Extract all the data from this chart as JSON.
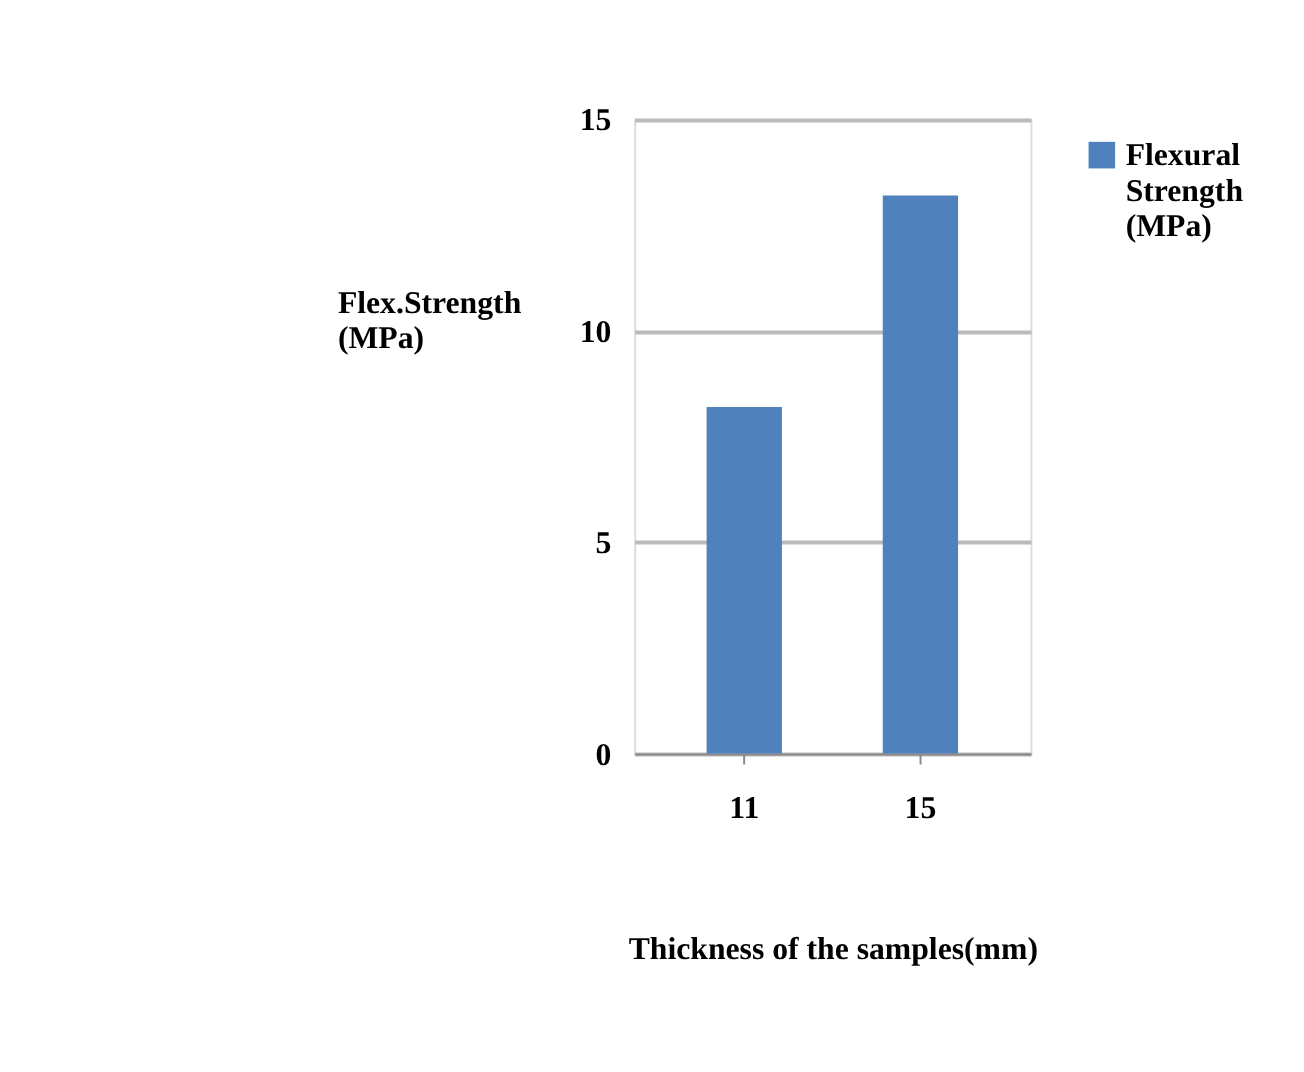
{
  "chart_data": {
    "type": "bar",
    "xlabel": "Thickness of the samples(mm)",
    "ylabel": "Flex.Strength (MPa)",
    "categories": [
      "11",
      "15"
    ],
    "series": [
      {
        "name": "Flexural Strength (MPa)",
        "color": "#4f81bd",
        "values": [
          8.2,
          13.2
        ]
      }
    ],
    "ylim": [
      0,
      15
    ],
    "yticks": [
      0,
      5,
      10,
      15
    ],
    "grid": "y",
    "legend": "right"
  }
}
